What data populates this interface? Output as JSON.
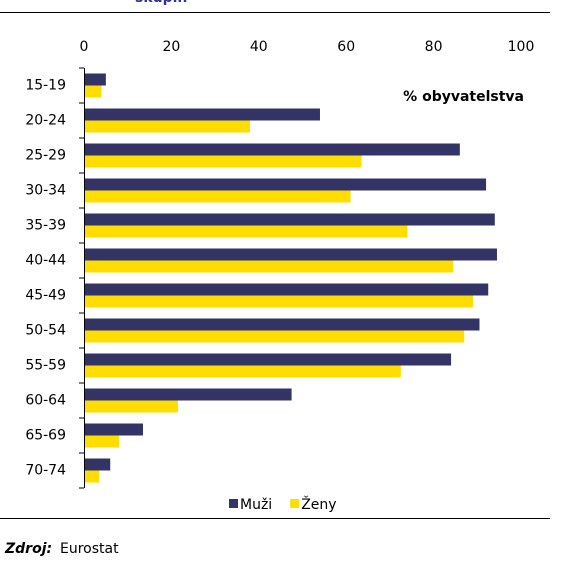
{
  "header": {
    "title": "skupin"
  },
  "chart_data": {
    "type": "bar",
    "orientation": "horizontal",
    "annotation": "% obyvatelstva",
    "categories": [
      "15-19",
      "20-24",
      "25-29",
      "30-34",
      "35-39",
      "40-44",
      "45-49",
      "50-54",
      "55-59",
      "60-64",
      "65-69",
      "70-74"
    ],
    "series": [
      {
        "name": "Muži",
        "color": "#333366",
        "values": [
          5,
          54,
          86,
          92,
          94,
          94.5,
          92.5,
          90.5,
          84,
          47.5,
          13.5,
          6
        ]
      },
      {
        "name": "Ženy",
        "color": "#ffdd00",
        "values": [
          4,
          38,
          63.5,
          61,
          74,
          84.5,
          89,
          87,
          72.5,
          21.5,
          8,
          3.5
        ]
      }
    ],
    "xlim": [
      0,
      100
    ],
    "xticks": [
      0,
      20,
      40,
      60,
      80,
      100
    ],
    "grid": false,
    "legend": "bottom"
  },
  "footer": {
    "source_label": "Zdroj:",
    "source": "Eurostat"
  }
}
